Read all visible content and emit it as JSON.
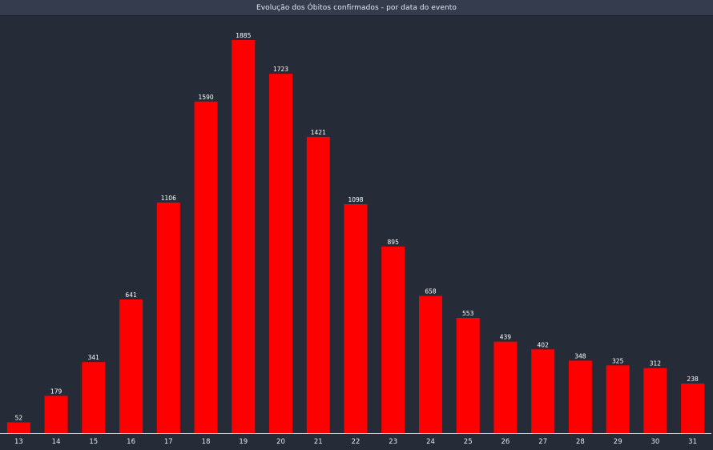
{
  "title": "Evolução dos Óbitos confirmados - por data do evento",
  "colors": {
    "background": "#262b38",
    "title_bar": "#353c4d",
    "bar": "#ff0000",
    "axis": "#d8dbe2",
    "text": "#ffffff"
  },
  "chart_data": {
    "type": "bar",
    "title": "Evolução dos Óbitos confirmados - por data do evento",
    "categories": [
      "13",
      "14",
      "15",
      "16",
      "17",
      "18",
      "19",
      "20",
      "21",
      "22",
      "23",
      "24",
      "25",
      "26",
      "27",
      "28",
      "29",
      "30",
      "31"
    ],
    "values": [
      52,
      179,
      341,
      641,
      1106,
      1590,
      1885,
      1723,
      1421,
      1098,
      895,
      658,
      553,
      439,
      402,
      348,
      325,
      312,
      238
    ],
    "data_labels": true,
    "ylim": [
      0,
      1885
    ],
    "grid": false,
    "legend": "none"
  }
}
